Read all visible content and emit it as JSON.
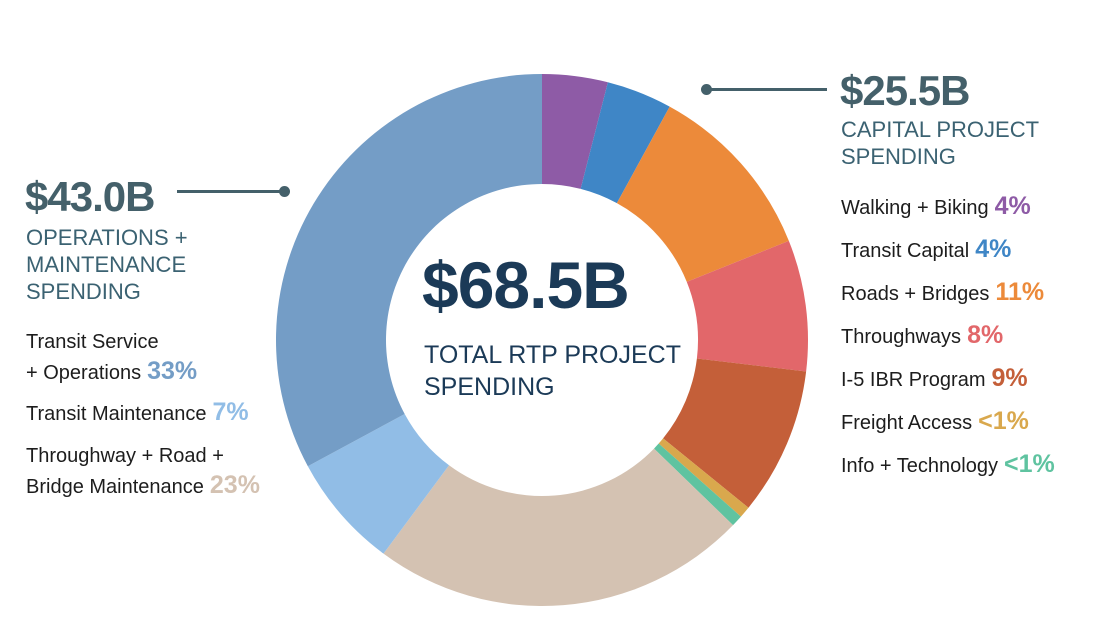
{
  "chart_data": {
    "type": "pie",
    "title": "",
    "total": {
      "amount": "$68.5B",
      "caption": "TOTAL RTP PROJECT SPENDING"
    },
    "groups": [
      {
        "amount": "$43.0B",
        "caption": [
          "OPERATIONS +",
          "MAINTENANCE",
          "SPENDING"
        ]
      },
      {
        "amount": "$25.5B",
        "caption": [
          "CAPITAL PROJECT",
          "SPENDING"
        ]
      }
    ],
    "slices": [
      {
        "label": "Walking + Biking",
        "pct_label": "4%",
        "value": 4,
        "color": "#8e5ba6"
      },
      {
        "label": "Transit Capital",
        "pct_label": "4%",
        "value": 4,
        "color": "#3f86c6"
      },
      {
        "label": "Roads + Bridges",
        "pct_label": "11%",
        "value": 11,
        "color": "#ec8a3a"
      },
      {
        "label": "Throughways",
        "pct_label": "8%",
        "value": 8,
        "color": "#e2676a"
      },
      {
        "label": "I-5 IBR Program",
        "pct_label": "9%",
        "value": 9,
        "color": "#c45f39"
      },
      {
        "label": "Freight Access",
        "pct_label": "<1%",
        "value": 0.7,
        "color": "#d9a84d"
      },
      {
        "label": "Info + Technology",
        "pct_label": "<1%",
        "value": 0.7,
        "color": "#5fc3a0"
      },
      {
        "label_lines": [
          "Throughway + Road +",
          "Bridge Maintenance"
        ],
        "pct_label": "23%",
        "value": 23,
        "color": "#d4c2b2"
      },
      {
        "label": "Transit Maintenance",
        "pct_label": "7%",
        "value": 7,
        "color": "#91bde6"
      },
      {
        "label_lines": [
          "Transit Service",
          "+ Operations"
        ],
        "pct_label": "33%",
        "value": 33,
        "color": "#749dc6"
      }
    ]
  }
}
